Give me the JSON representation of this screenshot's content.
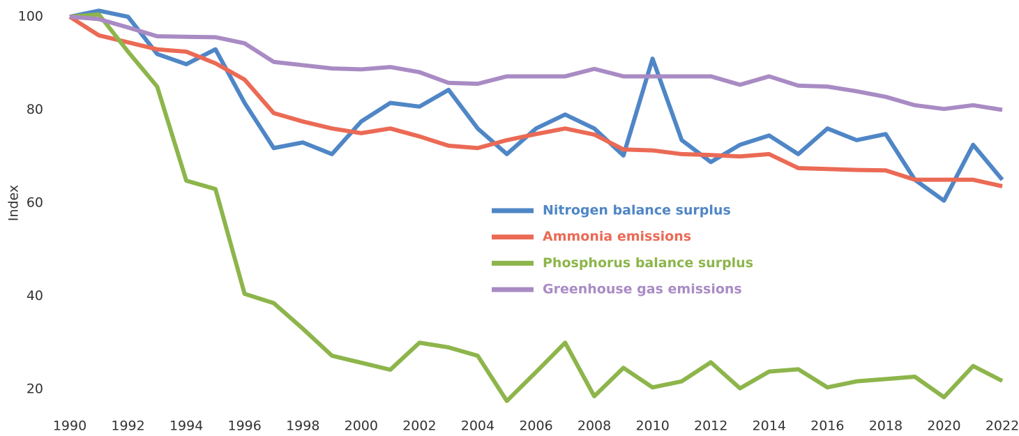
{
  "chart_data": {
    "type": "line",
    "y_label": "Index",
    "x": [
      1990,
      1991,
      1992,
      1993,
      1994,
      1995,
      1996,
      1997,
      1998,
      1999,
      2000,
      2001,
      2002,
      2003,
      2004,
      2005,
      2006,
      2007,
      2008,
      2009,
      2010,
      2011,
      2012,
      2013,
      2014,
      2015,
      2016,
      2017,
      2018,
      2019,
      2020,
      2021,
      2022
    ],
    "xlim": [
      1990,
      2022
    ],
    "xticks": [
      1990,
      1992,
      1994,
      1996,
      1998,
      2000,
      2002,
      2004,
      2006,
      2008,
      2010,
      2012,
      2014,
      2016,
      2018,
      2020,
      2022
    ],
    "ylim": [
      15,
      102
    ],
    "yticks": [
      20,
      40,
      60,
      80,
      100
    ],
    "legend_position": "center",
    "series": [
      {
        "name": "Nitrogen balance surplus",
        "color": "#4f86c6",
        "values": [
          100,
          101.3,
          100,
          92,
          89.8,
          93,
          81.5,
          71.8,
          73,
          70.5,
          77.5,
          81.5,
          80.7,
          84.3,
          76,
          70.5,
          76,
          79,
          76,
          70.2,
          91,
          73.5,
          68.8,
          72.5,
          74.5,
          70.5,
          76,
          73.5,
          74.8,
          65,
          60.5,
          72.5,
          65
        ]
      },
      {
        "name": "Ammonia emissions",
        "color": "#eb6a55",
        "values": [
          100,
          96,
          94.5,
          93,
          92.5,
          90,
          86.5,
          79.3,
          77.5,
          76,
          75,
          76,
          74.3,
          72.3,
          71.8,
          73.5,
          74.8,
          76,
          74.7,
          71.5,
          71.3,
          70.5,
          70.3,
          70,
          70.5,
          67.5,
          67.3,
          67.1,
          67,
          65,
          65,
          65,
          63.6
        ]
      },
      {
        "name": "Phosphorus balance surplus",
        "color": "#8db54b",
        "values": [
          100,
          100.5,
          92.5,
          85,
          64.8,
          63,
          40.5,
          38.5,
          33,
          27.2,
          25.7,
          24.2,
          30,
          29,
          27.2,
          17.5,
          23.7,
          30,
          18.5,
          24.6,
          20.4,
          21.7,
          25.8,
          20.2,
          23.8,
          24.3,
          20.4,
          21.7,
          22.2,
          22.7,
          18.3,
          25,
          21.8
        ]
      },
      {
        "name": "Greenhouse gas emissions",
        "color": "#a98bc4",
        "values": [
          100,
          99.5,
          97.7,
          95.8,
          95.7,
          95.6,
          94.3,
          90.3,
          89.6,
          88.9,
          88.7,
          89.2,
          88.1,
          85.8,
          85.6,
          87.2,
          87.2,
          87.2,
          88.8,
          87.2,
          87.2,
          87.2,
          87.2,
          85.4,
          87.2,
          85.2,
          85,
          84,
          82.8,
          81,
          80.2,
          81,
          80
        ]
      }
    ]
  }
}
